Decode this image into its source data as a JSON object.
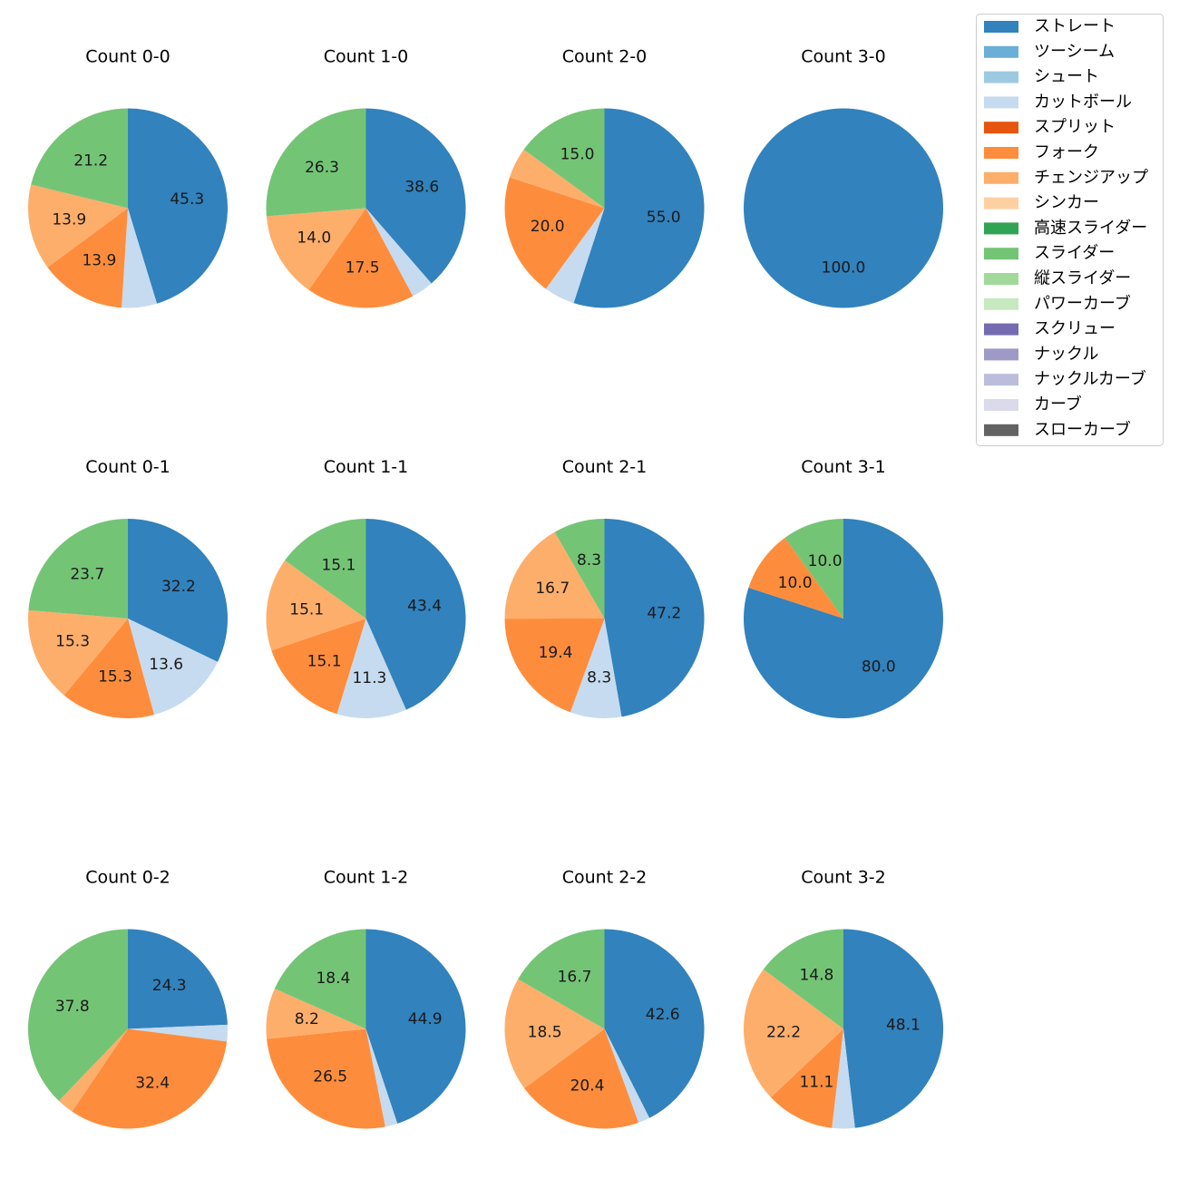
{
  "chart_data": {
    "type": "pie",
    "categories": [
      "ストレート",
      "ツーシーム",
      "シュート",
      "カットボール",
      "スプリット",
      "フォーク",
      "チェンジアップ",
      "シンカー",
      "高速スライダー",
      "スライダー",
      "縦スライダー",
      "パワーカーブ",
      "スクリュー",
      "ナックル",
      "ナックルカーブ",
      "カーブ",
      "スローカーブ"
    ],
    "colors": [
      "#3182bd",
      "#6baed6",
      "#9ecae1",
      "#c6dbef",
      "#e6550d",
      "#fd8d3c",
      "#fdae6b",
      "#fdd0a2",
      "#31a354",
      "#74c476",
      "#a1d99b",
      "#c7e9c0",
      "#756bb1",
      "#9e9ac8",
      "#bcbddc",
      "#dadaeb",
      "#636363"
    ],
    "legend_position": "top-right",
    "panels": [
      {
        "title": "Count 0-0",
        "values": {
          "ストレート": 45.3,
          "カットボール": 5.7,
          "フォーク": 13.9,
          "チェンジアップ": 13.9,
          "スライダー": 21.2
        },
        "labels": {
          "ストレート": "45.3",
          "フォーク": "13.9",
          "チェンジアップ": "13.9",
          "スライダー": "21.2"
        }
      },
      {
        "title": "Count 1-0",
        "values": {
          "ストレート": 38.6,
          "カットボール": 3.6,
          "フォーク": 17.5,
          "チェンジアップ": 14.0,
          "スライダー": 26.3
        },
        "labels": {
          "ストレート": "38.6",
          "フォーク": "17.5",
          "チェンジアップ": "14.0",
          "スライダー": "26.3"
        }
      },
      {
        "title": "Count 2-0",
        "values": {
          "ストレート": 55.0,
          "カットボール": 5.0,
          "フォーク": 20.0,
          "チェンジアップ": 5.0,
          "スライダー": 15.0
        },
        "labels": {
          "ストレート": "55.0",
          "フォーク": "20.0",
          "スライダー": "15.0"
        }
      },
      {
        "title": "Count 3-0",
        "values": {
          "ストレート": 100.0
        },
        "labels": {
          "ストレート": "100.0"
        }
      },
      {
        "title": "Count 0-1",
        "values": {
          "ストレート": 32.2,
          "カットボール": 13.6,
          "フォーク": 15.3,
          "チェンジアップ": 15.3,
          "スライダー": 23.7
        },
        "labels": {
          "ストレート": "32.2",
          "カットボール": "13.6",
          "フォーク": "15.3",
          "チェンジアップ": "15.3",
          "スライダー": "23.7"
        }
      },
      {
        "title": "Count 1-1",
        "values": {
          "ストレート": 43.4,
          "カットボール": 11.3,
          "フォーク": 15.1,
          "チェンジアップ": 15.1,
          "スライダー": 15.1
        },
        "labels": {
          "ストレート": "43.4",
          "カットボール": "11.3",
          "フォーク": "15.1",
          "チェンジアップ": "15.1",
          "スライダー": "15.1"
        }
      },
      {
        "title": "Count 2-1",
        "values": {
          "ストレート": 47.2,
          "カットボール": 8.3,
          "フォーク": 19.4,
          "チェンジアップ": 16.7,
          "スライダー": 8.3
        },
        "labels": {
          "ストレート": "47.2",
          "カットボール": "8.3",
          "フォーク": "19.4",
          "チェンジアップ": "16.7",
          "スライダー": "8.3"
        }
      },
      {
        "title": "Count 3-1",
        "values": {
          "ストレート": 80.0,
          "フォーク": 10.0,
          "スライダー": 10.0
        },
        "labels": {
          "ストレート": "80.0",
          "フォーク": "10.0",
          "スライダー": "10.0"
        }
      },
      {
        "title": "Count 0-2",
        "values": {
          "ストレート": 24.3,
          "カットボール": 2.7,
          "フォーク": 32.4,
          "チェンジアップ": 2.7,
          "スライダー": 37.8
        },
        "labels": {
          "ストレート": "24.3",
          "フォーク": "32.4",
          "スライダー": "37.8"
        }
      },
      {
        "title": "Count 1-2",
        "values": {
          "ストレート": 44.9,
          "カットボール": 2.0,
          "フォーク": 26.5,
          "チェンジアップ": 8.2,
          "スライダー": 18.4
        },
        "labels": {
          "ストレート": "44.9",
          "フォーク": "26.5",
          "チェンジアップ": "8.2",
          "スライダー": "18.4"
        }
      },
      {
        "title": "Count 2-2",
        "values": {
          "ストレート": 42.6,
          "カットボール": 1.9,
          "フォーク": 20.4,
          "チェンジアップ": 18.5,
          "スライダー": 16.7
        },
        "labels": {
          "ストレート": "42.6",
          "フォーク": "20.4",
          "チェンジアップ": "18.5",
          "スライダー": "16.7"
        }
      },
      {
        "title": "Count 3-2",
        "values": {
          "ストレート": 48.1,
          "カットボール": 3.7,
          "フォーク": 11.1,
          "チェンジアップ": 22.2,
          "スライダー": 14.8
        },
        "labels": {
          "ストレート": "48.1",
          "フォーク": "11.1",
          "チェンジアップ": "22.2",
          "スライダー": "14.8"
        }
      }
    ]
  }
}
